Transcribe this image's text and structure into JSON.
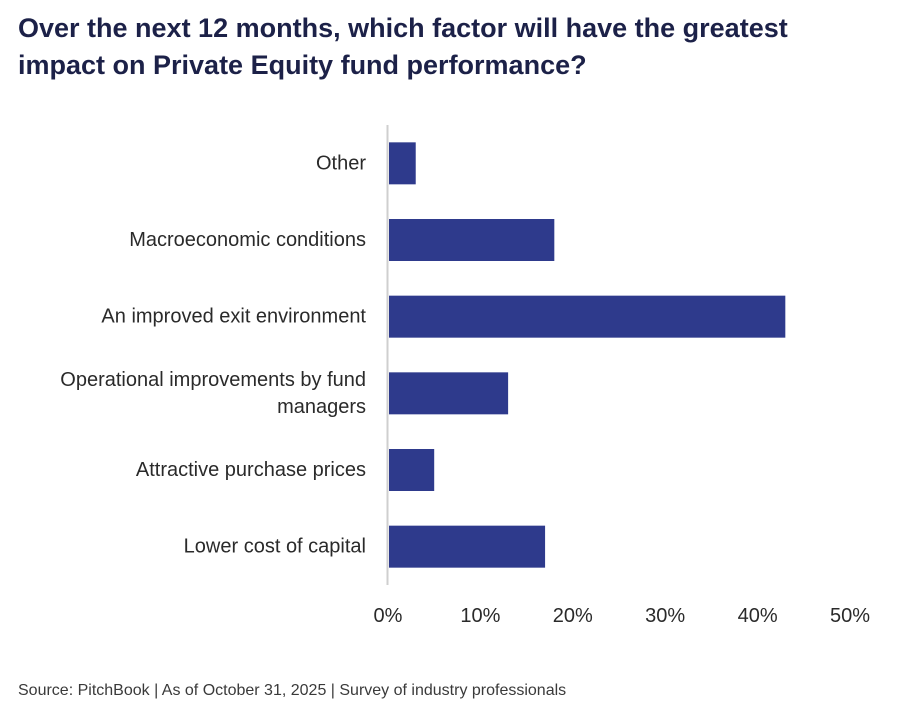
{
  "header": {
    "title": "Over the next 12 months, which factor will have the greatest impact on Private Equity fund performance?"
  },
  "footer": {
    "source": "Source: PitchBook | As of October 31, 2025 | Survey of industry professionals"
  },
  "colors": {
    "bar": "#2e3a8c",
    "axis": "#cfcfcf",
    "title": "#1c2148"
  },
  "chart_data": {
    "type": "bar",
    "orientation": "horizontal",
    "title": "Over the next 12 months, which factor will have the greatest impact on Private Equity fund performance?",
    "xlabel": "",
    "ylabel": "",
    "categories": [
      "Other",
      "Macroeconomic conditions",
      "An improved exit environment",
      "Operational improvements by fund managers",
      "Attractive purchase prices",
      "Lower cost of capital"
    ],
    "category_lines": [
      [
        "Other"
      ],
      [
        "Macroeconomic conditions"
      ],
      [
        "An improved exit environment"
      ],
      [
        "Operational improvements by fund",
        "managers"
      ],
      [
        "Attractive purchase prices"
      ],
      [
        "Lower cost of capital"
      ]
    ],
    "values": [
      3,
      18,
      43,
      13,
      5,
      17
    ],
    "xlim": [
      0,
      50
    ],
    "xticks": [
      0,
      10,
      20,
      30,
      40,
      50
    ],
    "xtick_labels": [
      "0%",
      "10%",
      "20%",
      "30%",
      "40%",
      "50%"
    ],
    "grid": false,
    "legend": "none"
  }
}
